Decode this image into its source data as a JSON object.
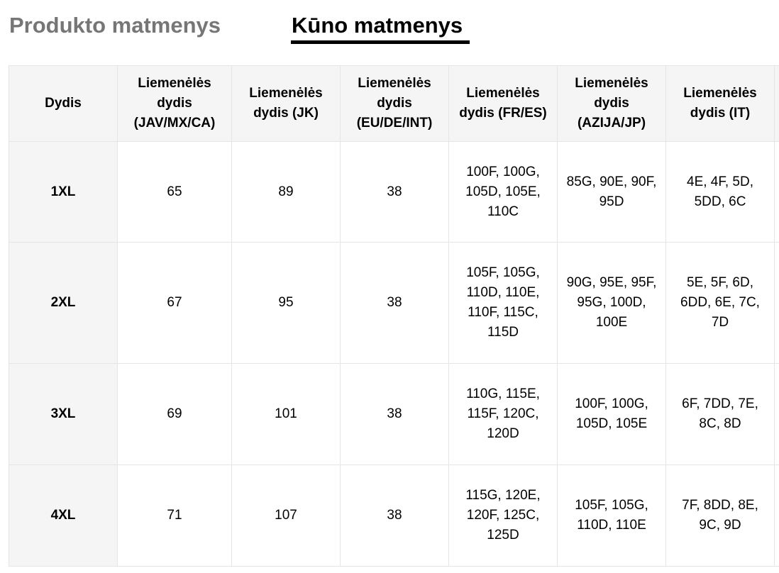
{
  "tabs": {
    "product": "Produkto matmenys",
    "body": "Kūno matmenys"
  },
  "table": {
    "headers": [
      "Dydis",
      "Liemenėlės dydis (JAV/MX/CA)",
      "Liemenėlės dydis (JK)",
      "Liemenėlės dydis (EU/DE/INT)",
      "Liemenėlės dydis (FR/ES)",
      "Liemenėlės dydis (AZIJA/JP)",
      "Liemenėlės dydis (IT)",
      ""
    ],
    "rows": [
      [
        "1XL",
        "65",
        "89",
        "38",
        "100F, 100G, 105D, 105E, 110C",
        "85G, 90E, 90F, 95D",
        "4E, 4F, 5D, 5DD, 6C",
        ""
      ],
      [
        "2XL",
        "67",
        "95",
        "38",
        "105F, 105G, 110D, 110E, 110F, 115C, 115D",
        "90G, 95E, 95F, 95G, 100D, 100E",
        "5E, 5F, 6D, 6DD, 6E, 7C, 7D",
        ""
      ],
      [
        "3XL",
        "69",
        "101",
        "38",
        "110G, 115E, 115F, 120C, 120D",
        "100F, 100G, 105D, 105E",
        "6F, 7DD, 7E, 8C, 8D",
        ""
      ],
      [
        "4XL",
        "71",
        "107",
        "38",
        "115G, 120E, 120F, 125C, 125D",
        "105F, 105G, 110D, 110E",
        "7F, 8DD, 8E, 9C, 9D",
        ""
      ]
    ]
  }
}
